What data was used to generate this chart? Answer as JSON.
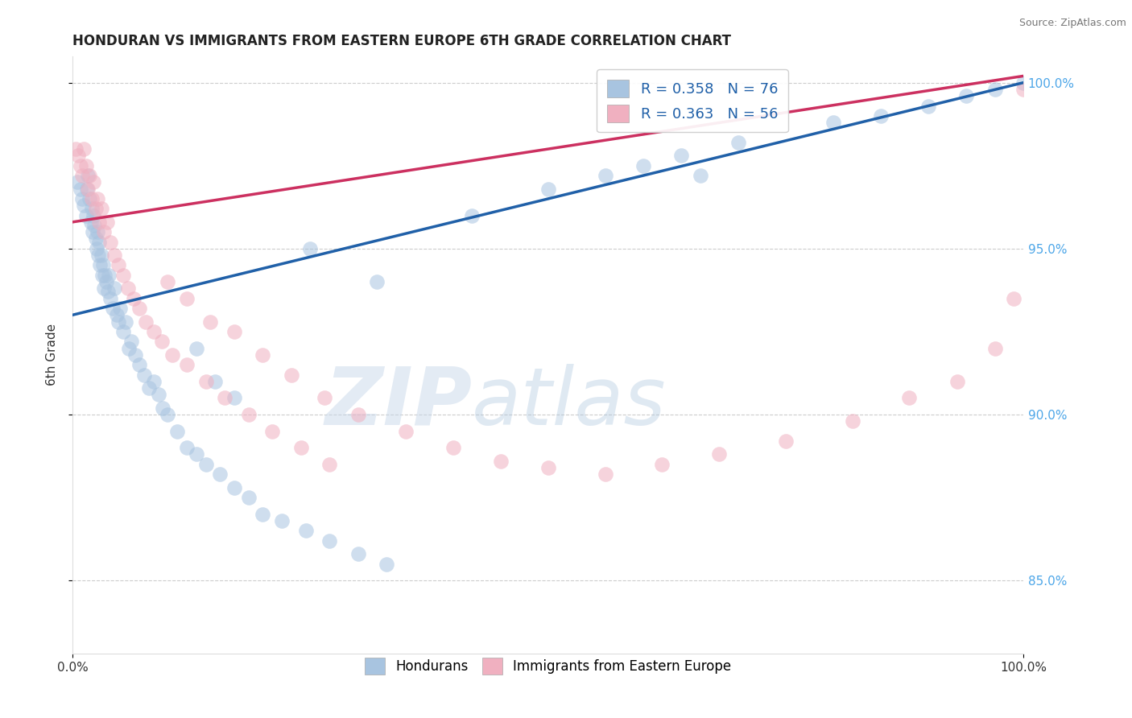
{
  "title": "HONDURAN VS IMMIGRANTS FROM EASTERN EUROPE 6TH GRADE CORRELATION CHART",
  "source_text": "Source: ZipAtlas.com",
  "ylabel": "6th Grade",
  "watermark_zip": "ZIP",
  "watermark_atlas": "atlas",
  "xmin": 0.0,
  "xmax": 1.0,
  "ymin": 0.828,
  "ymax": 1.008,
  "yticks": [
    0.85,
    0.9,
    0.95,
    1.0
  ],
  "ytick_labels": [
    "85.0%",
    "90.0%",
    "95.0%",
    "100.0%"
  ],
  "xtick_labels": [
    "0.0%",
    "100.0%"
  ],
  "blue_R": 0.358,
  "blue_N": 76,
  "pink_R": 0.363,
  "pink_N": 56,
  "blue_color": "#a8c4e0",
  "pink_color": "#f0b0c0",
  "blue_line_color": "#2060a8",
  "pink_line_color": "#cc3060",
  "legend_label_blue": "Hondurans",
  "legend_label_pink": "Immigrants from Eastern Europe",
  "blue_x": [
    0.005,
    0.008,
    0.01,
    0.012,
    0.014,
    0.015,
    0.016,
    0.018,
    0.019,
    0.02,
    0.021,
    0.022,
    0.023,
    0.024,
    0.025,
    0.026,
    0.027,
    0.028,
    0.029,
    0.03,
    0.031,
    0.032,
    0.033,
    0.034,
    0.035,
    0.037,
    0.038,
    0.04,
    0.042,
    0.044,
    0.046,
    0.048,
    0.05,
    0.053,
    0.056,
    0.059,
    0.062,
    0.066,
    0.07,
    0.075,
    0.08,
    0.085,
    0.09,
    0.095,
    0.1,
    0.11,
    0.12,
    0.13,
    0.14,
    0.155,
    0.17,
    0.185,
    0.2,
    0.22,
    0.245,
    0.27,
    0.3,
    0.33,
    0.13,
    0.15,
    0.17,
    0.25,
    0.32,
    0.42,
    0.5,
    0.56,
    0.6,
    0.64,
    0.66,
    0.7,
    0.8,
    0.85,
    0.9,
    0.94,
    0.97,
    1.0
  ],
  "blue_y": [
    0.97,
    0.968,
    0.965,
    0.963,
    0.96,
    0.968,
    0.972,
    0.965,
    0.958,
    0.962,
    0.955,
    0.96,
    0.957,
    0.953,
    0.95,
    0.955,
    0.948,
    0.952,
    0.945,
    0.948,
    0.942,
    0.945,
    0.938,
    0.942,
    0.94,
    0.937,
    0.942,
    0.935,
    0.932,
    0.938,
    0.93,
    0.928,
    0.932,
    0.925,
    0.928,
    0.92,
    0.922,
    0.918,
    0.915,
    0.912,
    0.908,
    0.91,
    0.906,
    0.902,
    0.9,
    0.895,
    0.89,
    0.888,
    0.885,
    0.882,
    0.878,
    0.875,
    0.87,
    0.868,
    0.865,
    0.862,
    0.858,
    0.855,
    0.92,
    0.91,
    0.905,
    0.95,
    0.94,
    0.96,
    0.968,
    0.972,
    0.975,
    0.978,
    0.972,
    0.982,
    0.988,
    0.99,
    0.993,
    0.996,
    0.998,
    1.0
  ],
  "pink_x": [
    0.003,
    0.006,
    0.008,
    0.01,
    0.012,
    0.014,
    0.016,
    0.018,
    0.02,
    0.022,
    0.024,
    0.026,
    0.028,
    0.03,
    0.033,
    0.036,
    0.04,
    0.044,
    0.048,
    0.053,
    0.058,
    0.064,
    0.07,
    0.077,
    0.085,
    0.094,
    0.105,
    0.12,
    0.14,
    0.16,
    0.185,
    0.21,
    0.24,
    0.27,
    0.1,
    0.12,
    0.145,
    0.17,
    0.2,
    0.23,
    0.265,
    0.3,
    0.35,
    0.4,
    0.45,
    0.5,
    0.56,
    0.62,
    0.68,
    0.75,
    0.82,
    0.88,
    0.93,
    0.97,
    0.99,
    1.0
  ],
  "pink_y": [
    0.98,
    0.978,
    0.975,
    0.972,
    0.98,
    0.975,
    0.968,
    0.972,
    0.965,
    0.97,
    0.962,
    0.965,
    0.958,
    0.962,
    0.955,
    0.958,
    0.952,
    0.948,
    0.945,
    0.942,
    0.938,
    0.935,
    0.932,
    0.928,
    0.925,
    0.922,
    0.918,
    0.915,
    0.91,
    0.905,
    0.9,
    0.895,
    0.89,
    0.885,
    0.94,
    0.935,
    0.928,
    0.925,
    0.918,
    0.912,
    0.905,
    0.9,
    0.895,
    0.89,
    0.886,
    0.884,
    0.882,
    0.885,
    0.888,
    0.892,
    0.898,
    0.905,
    0.91,
    0.92,
    0.935,
    0.998
  ],
  "blue_trend_x": [
    0.0,
    1.0
  ],
  "blue_trend_y": [
    0.93,
    1.0
  ],
  "pink_trend_x": [
    0.0,
    1.0
  ],
  "pink_trend_y": [
    0.958,
    1.002
  ],
  "bg_color": "#ffffff",
  "grid_color": "#cccccc",
  "title_fontsize": 12,
  "axis_fontsize": 11,
  "tick_fontsize": 10,
  "legend_fontsize": 13,
  "right_tick_color": "#4da6e8"
}
